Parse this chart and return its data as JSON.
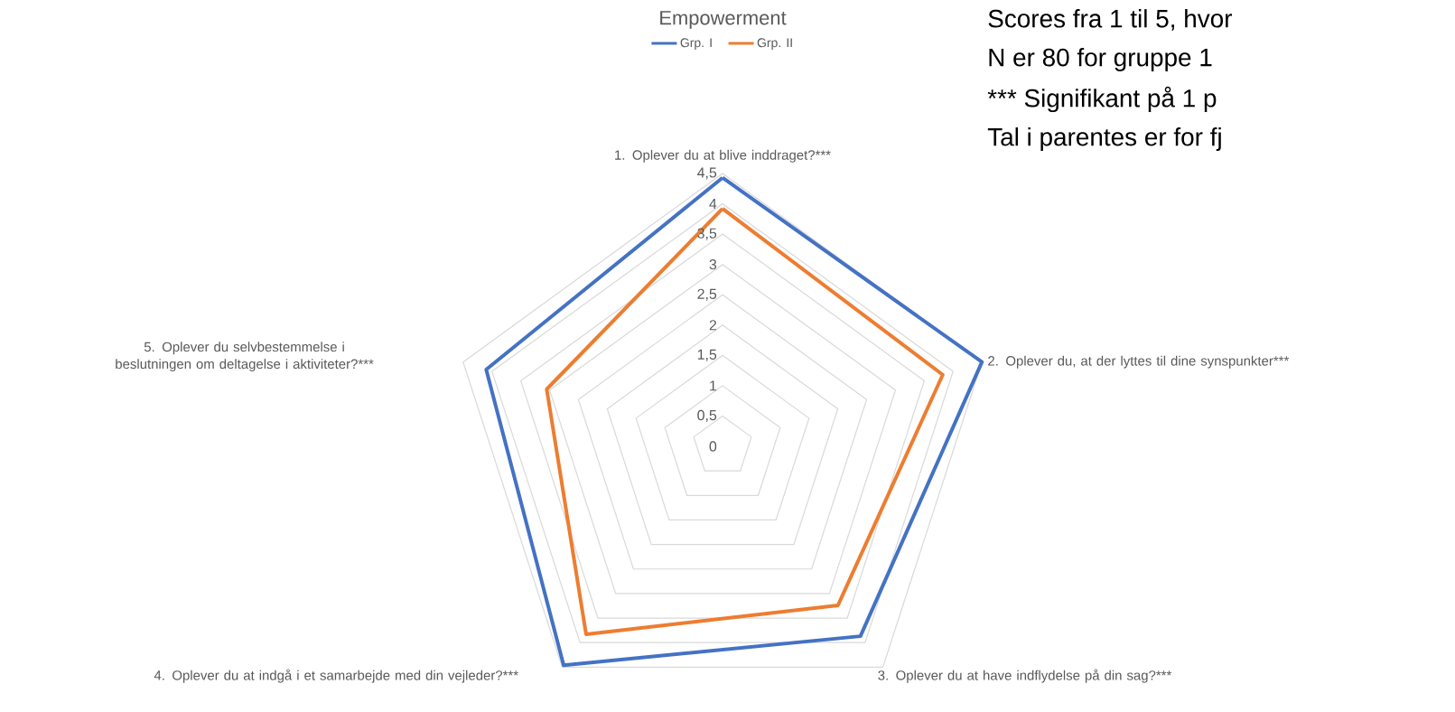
{
  "chart_data": {
    "type": "radar",
    "title": "Empowerment",
    "categories": [
      "1. Oplever du at blive inddraget?***",
      "2. Oplever du, at der lyttes til dine synspunkter***",
      "3. Oplever du at have indflydelse på din sag?***",
      "4. Oplever du at indgå i et samarbejde med din vejleder?***",
      "5. Oplever du selvbestemmelse i beslutningen om deltagelse i aktiviteter?***"
    ],
    "series": [
      {
        "name": "Grp. I",
        "color": "#4472c4",
        "values": [
          4.43,
          4.5,
          3.87,
          4.46,
          4.1
        ]
      },
      {
        "name": "Grp. II",
        "color": "#ed7d31",
        "values": [
          3.92,
          3.82,
          3.24,
          3.83,
          3.05
        ]
      }
    ],
    "ylim": [
      0,
      4.5
    ],
    "yticks": [
      {
        "value": 0,
        "label": "0"
      },
      {
        "value": 0.5,
        "label": "0,5"
      },
      {
        "value": 1,
        "label": "1"
      },
      {
        "value": 1.5,
        "label": "1,5"
      },
      {
        "value": 2,
        "label": "2"
      },
      {
        "value": 2.5,
        "label": "2,5"
      },
      {
        "value": 3,
        "label": "3"
      },
      {
        "value": 3.5,
        "label": "3,5"
      },
      {
        "value": 4,
        "label": "4"
      },
      {
        "value": 4.5,
        "label": "4,5"
      }
    ],
    "grid": true,
    "legend": "top",
    "line_style": "solid",
    "annotations": [
      "Scores fra 1 til 5, hvor",
      "N er 80 for gruppe 1",
      "*** Signifikant på 1 p",
      "Tal i parentes er for fj"
    ]
  }
}
